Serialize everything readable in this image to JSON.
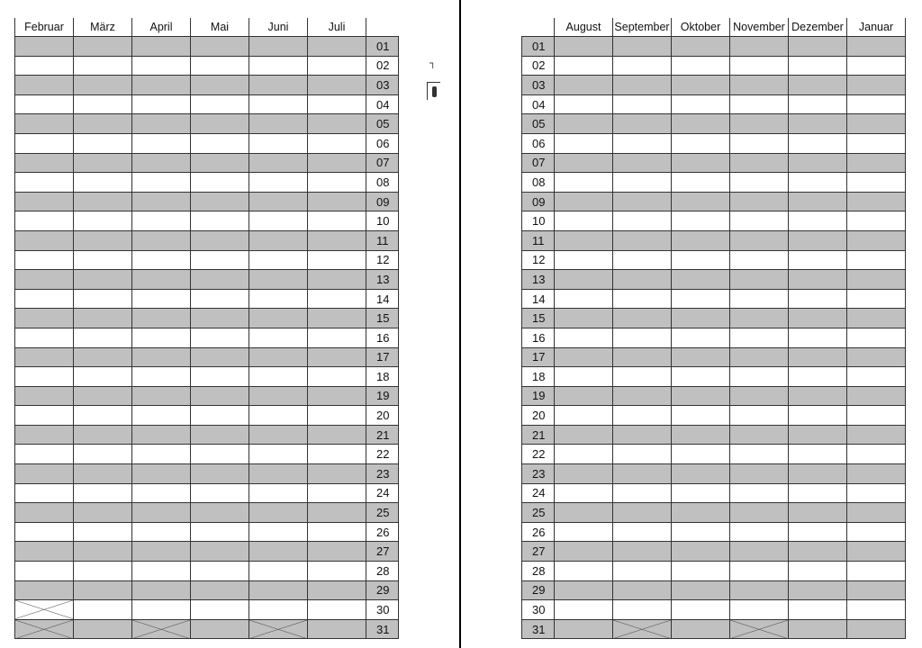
{
  "left_table": {
    "months": [
      "Februar",
      "März",
      "April",
      "Mai",
      "Juni",
      "Juli"
    ],
    "day_position": "right",
    "crossed_cells": [
      {
        "month": "Februar",
        "day": "30"
      },
      {
        "month": "Februar",
        "day": "31"
      },
      {
        "month": "April",
        "day": "31"
      },
      {
        "month": "Juni",
        "day": "31"
      }
    ]
  },
  "right_table": {
    "months": [
      "August",
      "September",
      "Oktober",
      "November",
      "Dezember",
      "Januar"
    ],
    "day_position": "left",
    "crossed_cells": [
      {
        "month": "September",
        "day": "31"
      },
      {
        "month": "November",
        "day": "31"
      }
    ]
  },
  "days": [
    "01",
    "02",
    "03",
    "04",
    "05",
    "06",
    "07",
    "08",
    "09",
    "10",
    "11",
    "12",
    "13",
    "14",
    "15",
    "16",
    "17",
    "18",
    "19",
    "20",
    "21",
    "22",
    "23",
    "24",
    "25",
    "26",
    "27",
    "28",
    "29",
    "30",
    "31"
  ],
  "colors": {
    "shaded_row": "#c0c0c0",
    "grid": "#333333",
    "divider": "#000000"
  },
  "icons": [
    "fold-mark-icon",
    "cut-mark-icon"
  ]
}
